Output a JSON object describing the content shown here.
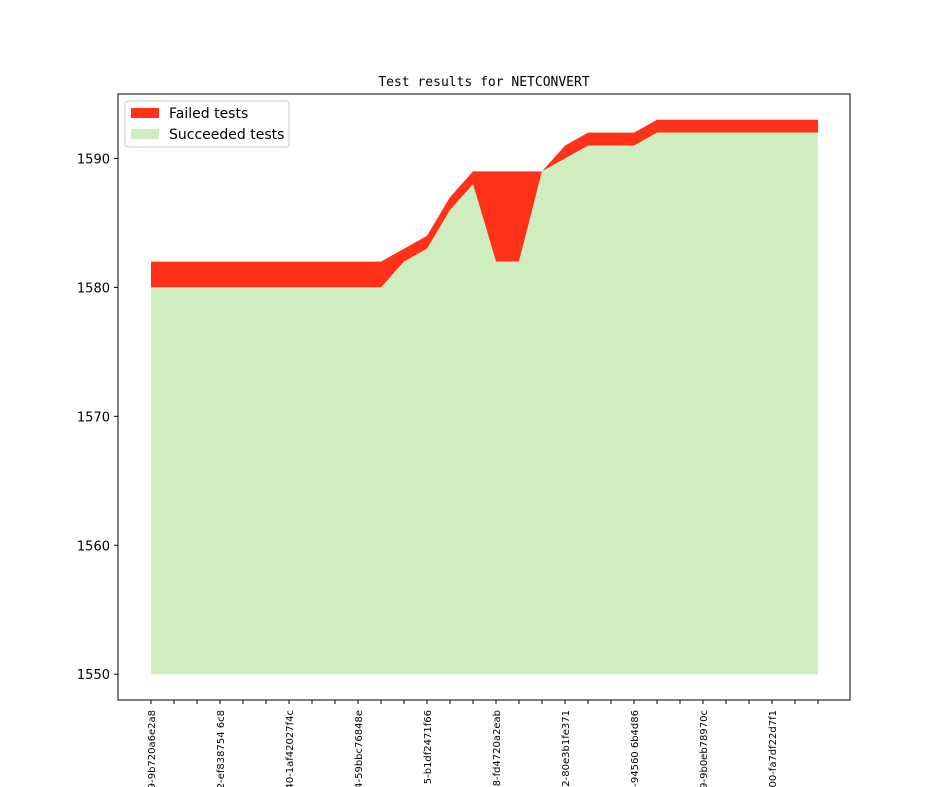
{
  "chart_data": {
    "type": "area",
    "title": "Test results for NETCONVERT",
    "xlabel": "",
    "ylabel": "",
    "ylim": [
      1548,
      1595
    ],
    "yticks": [
      1550,
      1560,
      1570,
      1580,
      1590
    ],
    "ytick_labels": [
      "1550",
      "1560",
      "1570",
      "1580",
      "1590"
    ],
    "xtick_labels": [
      "9-9b720a6e2a8",
      "",
      "",
      "2-ef838754 6c8",
      "",
      "",
      "40-1af42027f4c",
      "",
      "",
      "4-59bbc76848e",
      "",
      "",
      "5-b1df2471f66",
      "",
      "",
      "8-fd4720a2eab",
      "",
      "",
      "2-80e3b1fe371",
      "",
      "",
      "3-94560 6b4d86",
      "",
      "",
      "9-9b0eb78970c",
      "",
      "",
      "00-fa7df22d7f1",
      "",
      ""
    ],
    "baseline": 1550,
    "legend_position": "upper-left",
    "colors": {
      "failed": "#ff3119",
      "succeeded": "#cfedbf"
    },
    "series": [
      {
        "name": "Failed tests",
        "values": [
          2,
          2,
          2,
          2,
          2,
          2,
          2,
          2,
          2,
          2,
          2,
          1,
          1,
          1,
          1,
          7,
          7,
          0,
          1,
          1,
          1,
          1,
          1,
          1,
          1,
          1,
          1,
          1,
          1,
          1
        ]
      },
      {
        "name": "Succeeded tests",
        "values": [
          1580,
          1580,
          1580,
          1580,
          1580,
          1580,
          1580,
          1580,
          1580,
          1580,
          1580,
          1582,
          1583,
          1586,
          1588,
          1582,
          1582,
          1589,
          1590,
          1591,
          1591,
          1591,
          1592,
          1592,
          1592,
          1592,
          1592,
          1592,
          1592,
          1592
        ]
      }
    ]
  }
}
